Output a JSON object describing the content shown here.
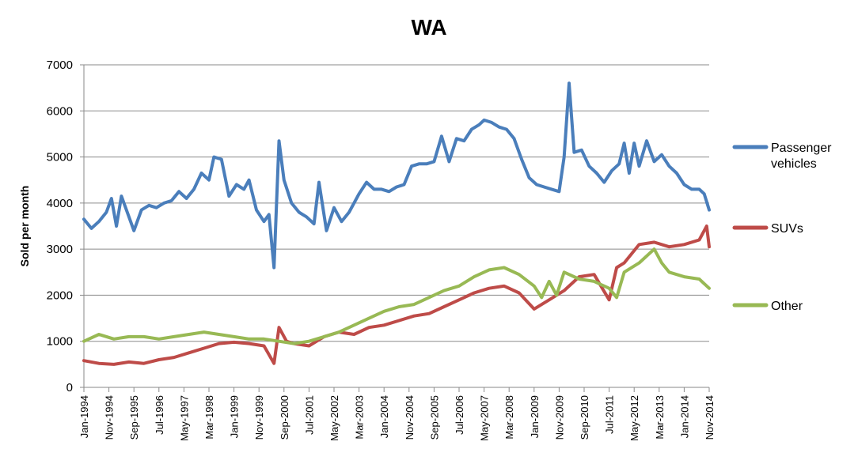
{
  "chart_data": {
    "type": "line",
    "title": "WA",
    "ylabel": "Sold per month",
    "xlabel": "",
    "ylim": [
      0,
      7000
    ],
    "yticks": [
      0,
      1000,
      2000,
      3000,
      4000,
      5000,
      6000,
      7000
    ],
    "grid": true,
    "legend_position": "right",
    "x_tick_labels": [
      "Jan-1994",
      "Nov-1994",
      "Sep-1995",
      "Jul-1996",
      "May-1997",
      "Mar-1998",
      "Jan-1999",
      "Nov-1999",
      "Sep-2000",
      "Jul-2001",
      "May-2002",
      "Mar-2003",
      "Jan-2004",
      "Nov-2004",
      "Sep-2005",
      "Jul-2006",
      "May-2007",
      "Mar-2008",
      "Jan-2009",
      "Nov-2009",
      "Sep-2010",
      "Jul-2011",
      "May-2012",
      "Mar-2013",
      "Jan-2014",
      "Nov-2014"
    ],
    "series": [
      {
        "name": "Passenger vehicles",
        "color": "#4a7ebb",
        "points": [
          [
            "Jan-1994",
            3650
          ],
          [
            "Apr-1994",
            3450
          ],
          [
            "Jul-1994",
            3600
          ],
          [
            "Oct-1994",
            3800
          ],
          [
            "Dec-1994",
            4100
          ],
          [
            "Feb-1995",
            3500
          ],
          [
            "Apr-1995",
            4150
          ],
          [
            "Jul-1995",
            3700
          ],
          [
            "Sep-1995",
            3400
          ],
          [
            "Dec-1995",
            3850
          ],
          [
            "Mar-1996",
            3950
          ],
          [
            "Jun-1996",
            3900
          ],
          [
            "Sep-1996",
            4000
          ],
          [
            "Dec-1996",
            4050
          ],
          [
            "Mar-1997",
            4250
          ],
          [
            "Jun-1997",
            4100
          ],
          [
            "Sep-1997",
            4300
          ],
          [
            "Dec-1997",
            4650
          ],
          [
            "Mar-1998",
            4500
          ],
          [
            "May-1998",
            5000
          ],
          [
            "Aug-1998",
            4950
          ],
          [
            "Nov-1998",
            4150
          ],
          [
            "Feb-1999",
            4400
          ],
          [
            "May-1999",
            4300
          ],
          [
            "Jul-1999",
            4500
          ],
          [
            "Oct-1999",
            3850
          ],
          [
            "Jan-2000",
            3600
          ],
          [
            "Mar-2000",
            3750
          ],
          [
            "May-2000",
            2600
          ],
          [
            "Jul-2000",
            5350
          ],
          [
            "Sep-2000",
            4500
          ],
          [
            "Dec-2000",
            4000
          ],
          [
            "Mar-2001",
            3800
          ],
          [
            "Jun-2001",
            3700
          ],
          [
            "Sep-2001",
            3550
          ],
          [
            "Nov-2001",
            4450
          ],
          [
            "Feb-2002",
            3400
          ],
          [
            "May-2002",
            3900
          ],
          [
            "Aug-2002",
            3600
          ],
          [
            "Nov-2002",
            3800
          ],
          [
            "Mar-2003",
            4200
          ],
          [
            "Jun-2003",
            4450
          ],
          [
            "Sep-2003",
            4300
          ],
          [
            "Dec-2003",
            4300
          ],
          [
            "Mar-2004",
            4250
          ],
          [
            "Jun-2004",
            4350
          ],
          [
            "Sep-2004",
            4400
          ],
          [
            "Dec-2004",
            4800
          ],
          [
            "Mar-2005",
            4850
          ],
          [
            "Jun-2005",
            4850
          ],
          [
            "Sep-2005",
            4900
          ],
          [
            "Dec-2005",
            5450
          ],
          [
            "Mar-2006",
            4900
          ],
          [
            "Jun-2006",
            5400
          ],
          [
            "Sep-2006",
            5350
          ],
          [
            "Dec-2006",
            5600
          ],
          [
            "Mar-2007",
            5700
          ],
          [
            "May-2007",
            5800
          ],
          [
            "Aug-2007",
            5750
          ],
          [
            "Nov-2007",
            5650
          ],
          [
            "Feb-2008",
            5600
          ],
          [
            "May-2008",
            5400
          ],
          [
            "Aug-2008",
            4950
          ],
          [
            "Nov-2008",
            4550
          ],
          [
            "Feb-2009",
            4400
          ],
          [
            "May-2009",
            4350
          ],
          [
            "Aug-2009",
            4300
          ],
          [
            "Nov-2009",
            4250
          ],
          [
            "Jan-2010",
            5000
          ],
          [
            "Mar-2010",
            6600
          ],
          [
            "May-2010",
            5100
          ],
          [
            "Aug-2010",
            5150
          ],
          [
            "Nov-2010",
            4800
          ],
          [
            "Feb-2011",
            4650
          ],
          [
            "May-2011",
            4450
          ],
          [
            "Aug-2011",
            4700
          ],
          [
            "Nov-2011",
            4850
          ],
          [
            "Jan-2012",
            5300
          ],
          [
            "Mar-2012",
            4650
          ],
          [
            "May-2012",
            5300
          ],
          [
            "Jul-2012",
            4800
          ],
          [
            "Oct-2012",
            5350
          ],
          [
            "Jan-2013",
            4900
          ],
          [
            "Apr-2013",
            5050
          ],
          [
            "Jul-2013",
            4800
          ],
          [
            "Oct-2013",
            4650
          ],
          [
            "Jan-2014",
            4400
          ],
          [
            "Apr-2014",
            4300
          ],
          [
            "Jul-2014",
            4300
          ],
          [
            "Sep-2014",
            4200
          ],
          [
            "Nov-2014",
            3850
          ]
        ]
      },
      {
        "name": "SUVs",
        "color": "#be4b48",
        "points": [
          [
            "Jan-1994",
            580
          ],
          [
            "Jul-1994",
            520
          ],
          [
            "Jan-1995",
            500
          ],
          [
            "Jul-1995",
            550
          ],
          [
            "Jan-1996",
            520
          ],
          [
            "Jul-1996",
            600
          ],
          [
            "Jan-1997",
            650
          ],
          [
            "Jul-1997",
            750
          ],
          [
            "Jan-1998",
            850
          ],
          [
            "Jul-1998",
            950
          ],
          [
            "Jan-1999",
            980
          ],
          [
            "Jul-1999",
            950
          ],
          [
            "Jan-2000",
            900
          ],
          [
            "May-2000",
            520
          ],
          [
            "Jul-2000",
            1300
          ],
          [
            "Oct-2000",
            1000
          ],
          [
            "Jan-2001",
            950
          ],
          [
            "Jul-2001",
            900
          ],
          [
            "Jan-2002",
            1100
          ],
          [
            "Jul-2002",
            1200
          ],
          [
            "Jan-2003",
            1150
          ],
          [
            "Jul-2003",
            1300
          ],
          [
            "Jan-2004",
            1350
          ],
          [
            "Jul-2004",
            1450
          ],
          [
            "Jan-2005",
            1550
          ],
          [
            "Jul-2005",
            1600
          ],
          [
            "Jan-2006",
            1750
          ],
          [
            "Jul-2006",
            1900
          ],
          [
            "Jan-2007",
            2050
          ],
          [
            "Jul-2007",
            2150
          ],
          [
            "Jan-2008",
            2200
          ],
          [
            "Jul-2008",
            2050
          ],
          [
            "Jan-2009",
            1700
          ],
          [
            "Jul-2009",
            1900
          ],
          [
            "Jan-2010",
            2100
          ],
          [
            "Jul-2010",
            2400
          ],
          [
            "Jan-2011",
            2450
          ],
          [
            "Jul-2011",
            1900
          ],
          [
            "Oct-2011",
            2600
          ],
          [
            "Jan-2012",
            2700
          ],
          [
            "Jul-2012",
            3100
          ],
          [
            "Jan-2013",
            3150
          ],
          [
            "Jul-2013",
            3050
          ],
          [
            "Jan-2014",
            3100
          ],
          [
            "Jul-2014",
            3200
          ],
          [
            "Oct-2014",
            3500
          ],
          [
            "Nov-2014",
            3050
          ]
        ]
      },
      {
        "name": "Other",
        "color": "#98b954",
        "points": [
          [
            "Jan-1994",
            1000
          ],
          [
            "Jul-1994",
            1150
          ],
          [
            "Jan-1995",
            1050
          ],
          [
            "Jul-1995",
            1100
          ],
          [
            "Jan-1996",
            1100
          ],
          [
            "Jul-1996",
            1050
          ],
          [
            "Jan-1997",
            1100
          ],
          [
            "Jul-1997",
            1150
          ],
          [
            "Jan-1998",
            1200
          ],
          [
            "Jul-1998",
            1150
          ],
          [
            "Jan-1999",
            1100
          ],
          [
            "Jul-1999",
            1050
          ],
          [
            "Jan-2000",
            1050
          ],
          [
            "Jul-2000",
            1000
          ],
          [
            "Jan-2001",
            950
          ],
          [
            "Jul-2001",
            1000
          ],
          [
            "Jan-2002",
            1100
          ],
          [
            "Jul-2002",
            1200
          ],
          [
            "Jan-2003",
            1350
          ],
          [
            "Jul-2003",
            1500
          ],
          [
            "Jan-2004",
            1650
          ],
          [
            "Jul-2004",
            1750
          ],
          [
            "Jan-2005",
            1800
          ],
          [
            "Jul-2005",
            1950
          ],
          [
            "Jan-2006",
            2100
          ],
          [
            "Jul-2006",
            2200
          ],
          [
            "Jan-2007",
            2400
          ],
          [
            "Jul-2007",
            2550
          ],
          [
            "Jan-2008",
            2600
          ],
          [
            "Jul-2008",
            2450
          ],
          [
            "Jan-2009",
            2200
          ],
          [
            "Apr-2009",
            1950
          ],
          [
            "Jul-2009",
            2300
          ],
          [
            "Oct-2009",
            2000
          ],
          [
            "Jan-2010",
            2500
          ],
          [
            "Jul-2010",
            2350
          ],
          [
            "Jan-2011",
            2300
          ],
          [
            "Jul-2011",
            2150
          ],
          [
            "Oct-2011",
            1950
          ],
          [
            "Jan-2012",
            2500
          ],
          [
            "Jul-2012",
            2700
          ],
          [
            "Jan-2013",
            3000
          ],
          [
            "Apr-2013",
            2700
          ],
          [
            "Jul-2013",
            2500
          ],
          [
            "Jan-2014",
            2400
          ],
          [
            "Jul-2014",
            2350
          ],
          [
            "Nov-2014",
            2150
          ]
        ]
      }
    ]
  }
}
